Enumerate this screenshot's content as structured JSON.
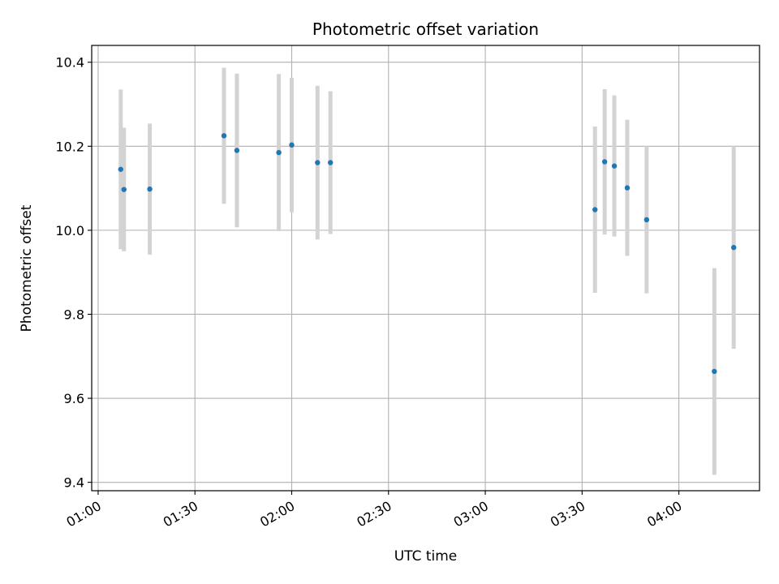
{
  "chart_data": {
    "type": "scatter",
    "title": "Photometric offset variation",
    "xlabel": "UTC time",
    "ylabel": "Photometric offset",
    "x_ticks": [
      "01:00",
      "01:30",
      "02:00",
      "02:30",
      "03:00",
      "03:30",
      "04:00"
    ],
    "y_ticks": [
      "9.4",
      "9.6",
      "9.8",
      "10.0",
      "10.2",
      "10.4"
    ],
    "xlim": [
      "00:58",
      "04:25"
    ],
    "ylim": [
      9.38,
      10.44
    ],
    "grid": true,
    "colors": {
      "point": "#1f77b4",
      "errorbar": "#d3d3d3",
      "grid": "#b0b0b0"
    },
    "points": [
      {
        "t": "01:07",
        "y": 10.145,
        "err": 0.19
      },
      {
        "t": "01:08",
        "y": 10.097,
        "err": 0.147
      },
      {
        "t": "01:16",
        "y": 10.098,
        "err": 0.156
      },
      {
        "t": "01:39",
        "y": 10.225,
        "err": 0.162
      },
      {
        "t": "01:43",
        "y": 10.19,
        "err": 0.183
      },
      {
        "t": "01:56",
        "y": 10.185,
        "err": 0.187
      },
      {
        "t": "02:00",
        "y": 10.203,
        "err": 0.16
      },
      {
        "t": "02:08",
        "y": 10.161,
        "err": 0.183
      },
      {
        "t": "02:12",
        "y": 10.161,
        "err": 0.17
      },
      {
        "t": "03:34",
        "y": 10.049,
        "err": 0.198
      },
      {
        "t": "03:37",
        "y": 10.163,
        "err": 0.173
      },
      {
        "t": "03:40",
        "y": 10.153,
        "err": 0.168
      },
      {
        "t": "03:44",
        "y": 10.101,
        "err": 0.162
      },
      {
        "t": "03:50",
        "y": 10.025,
        "err": 0.175
      },
      {
        "t": "04:11",
        "y": 9.664,
        "err": 0.246
      },
      {
        "t": "04:17",
        "y": 9.959,
        "err": 0.241
      }
    ]
  }
}
